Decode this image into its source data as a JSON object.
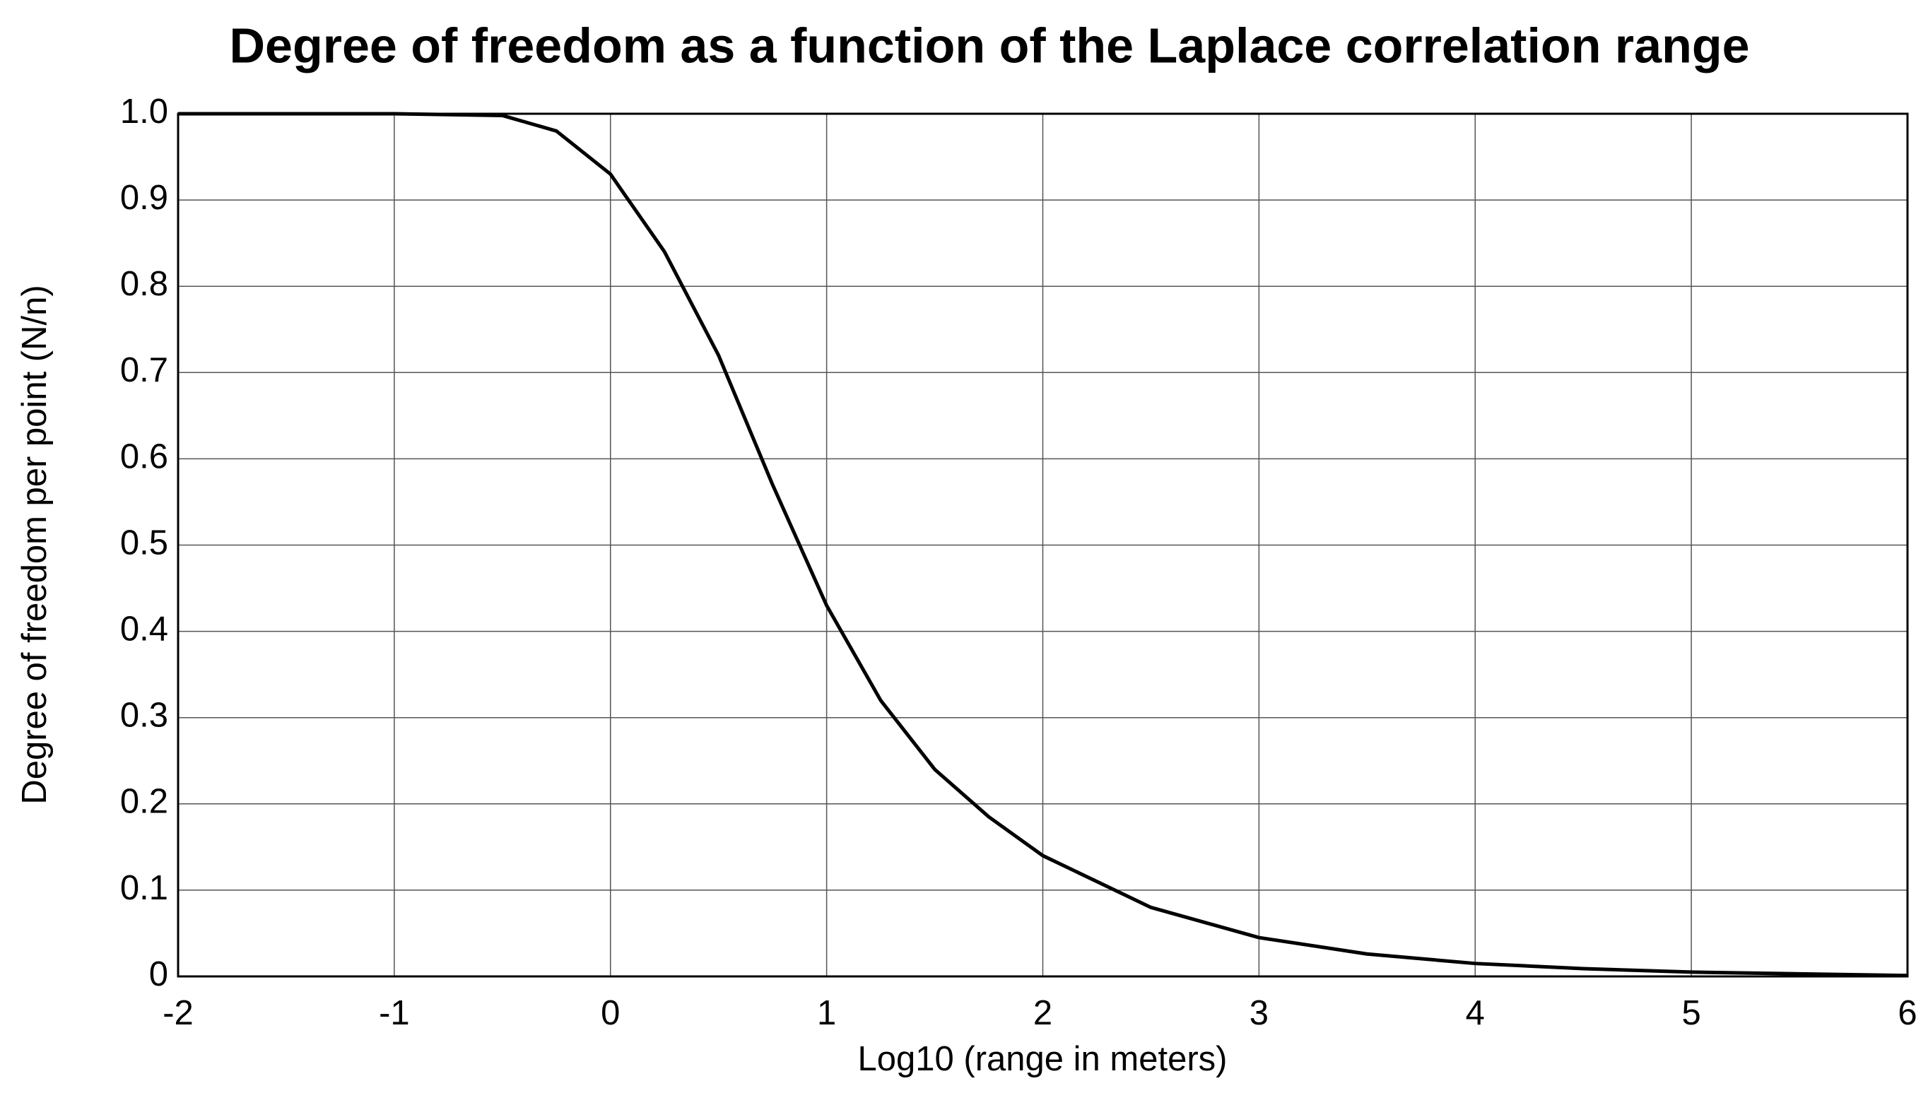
{
  "chart_data": {
    "type": "line",
    "title": "Degree of freedom as a function of the Laplace correlation range",
    "x_label": "Log10 (range in meters)",
    "y_label": "Degree of freedom per point (N/n)",
    "x": [
      -2,
      -1.5,
      -1,
      -0.5,
      -0.25,
      0,
      0.25,
      0.5,
      0.75,
      1,
      1.25,
      1.5,
      1.75,
      2,
      2.5,
      3,
      3.5,
      4,
      4.5,
      5,
      5.5,
      6
    ],
    "series": [
      {
        "name": "N/n",
        "color": "#000000",
        "values": [
          1.0,
          1.0,
          1.0,
          0.998,
          0.98,
          0.93,
          0.84,
          0.72,
          0.57,
          0.43,
          0.32,
          0.24,
          0.185,
          0.14,
          0.08,
          0.045,
          0.026,
          0.015,
          0.009,
          0.005,
          0.003,
          0.001
        ]
      }
    ],
    "xlim": [
      -2,
      6
    ],
    "xticks": [
      -2,
      -1,
      0,
      1,
      2,
      3,
      4,
      5,
      6
    ],
    "ylim": [
      0,
      1
    ],
    "yticks": [
      0,
      0.1,
      0.2,
      0.3,
      0.4,
      0.5,
      0.6,
      0.7,
      0.8,
      0.9,
      {
        "value": 1,
        "label": "1.0"
      }
    ],
    "grid": true
  }
}
